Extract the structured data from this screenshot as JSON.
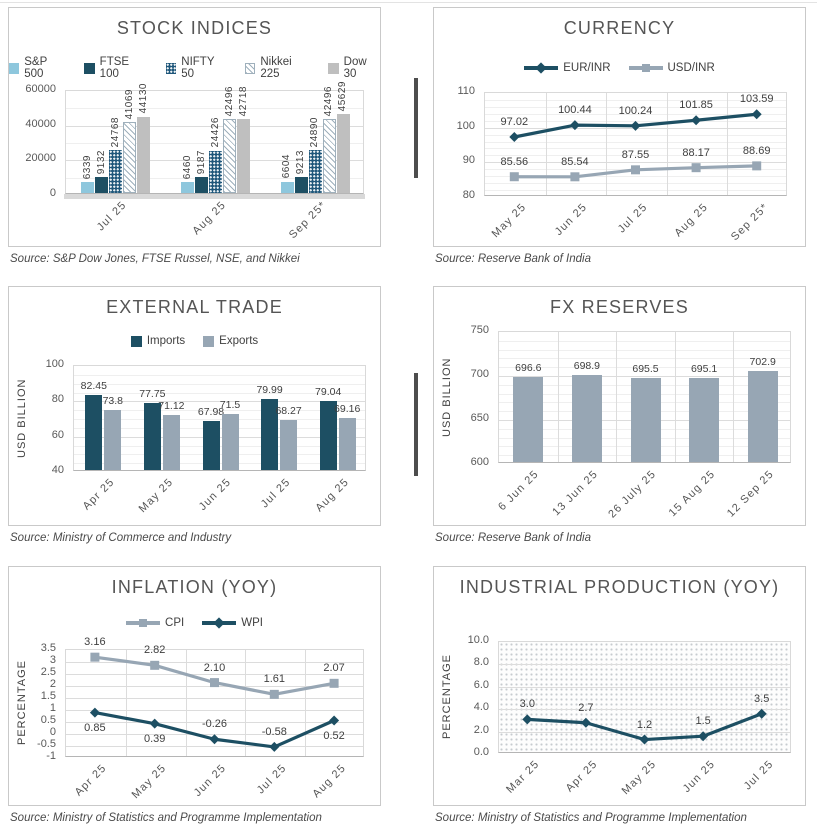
{
  "colors": {
    "teal": "#1d4f63",
    "light_blue": "#8ec7dd",
    "gray": "#bfbfbf",
    "gray_blue": "#97a6b4",
    "nifty_blue": "#1e567a",
    "hatch_line": "#9fb0bc"
  },
  "chart_data": [
    {
      "type": "bar",
      "title": "STOCK INDICES",
      "source": "Source: S&P Dow Jones, FTSE Russel, NSE, and Nikkei",
      "categories": [
        "Jul 25",
        "Aug 25",
        "Sep 25*"
      ],
      "series": [
        {
          "name": "S&P 500",
          "color": "light_blue",
          "pattern": "solid",
          "values": [
            6339,
            6460,
            6604
          ],
          "labels": [
            "6339",
            "6460",
            "6604"
          ]
        },
        {
          "name": "FTSE 100",
          "color": "teal",
          "pattern": "solid",
          "values": [
            9132,
            9187,
            9213
          ],
          "labels": [
            "9132",
            "9187",
            "9213"
          ]
        },
        {
          "name": "NIFTY 50",
          "color": "nifty_blue",
          "pattern": "dots",
          "values": [
            24768,
            24426,
            24890
          ],
          "labels": [
            "24768",
            "24426",
            "24890"
          ]
        },
        {
          "name": "Nikkei 225",
          "color": "hatch_line",
          "pattern": "hatch",
          "values": [
            41069,
            42496,
            42496
          ],
          "labels": [
            "41069",
            "42496",
            "42496"
          ]
        },
        {
          "name": "Dow 30",
          "color": "gray",
          "pattern": "solid",
          "values": [
            44130,
            42718,
            45629
          ],
          "labels": [
            "44130",
            "42718",
            "45629"
          ]
        }
      ],
      "ylim": [
        0,
        60000
      ],
      "ytick_values": [
        0,
        20000,
        40000,
        60000
      ],
      "ytick_labels": [
        "0",
        "20000",
        "40000",
        "60000"
      ],
      "legend": true,
      "grid": "horizontal"
    },
    {
      "type": "line",
      "title": "CURRENCY",
      "source": "Source: Reserve Bank of India",
      "categories": [
        "May 25",
        "Jun 25",
        "Jul 25",
        "Aug 25",
        "Sep 25*"
      ],
      "series": [
        {
          "name": "EUR/INR",
          "color": "teal",
          "marker": "diamond",
          "values": [
            97.02,
            100.44,
            100.24,
            101.85,
            103.59
          ],
          "labels": [
            "97.02",
            "100.44",
            "100.24",
            "101.85",
            "103.59"
          ],
          "label_position": "above"
        },
        {
          "name": "USD/INR",
          "color": "gray_blue",
          "marker": "square",
          "values": [
            85.56,
            85.54,
            87.55,
            88.17,
            88.69
          ],
          "labels": [
            "85.56",
            "85.54",
            "87.55",
            "88.17",
            "88.69"
          ],
          "label_position": "above"
        }
      ],
      "ylim": [
        80,
        110
      ],
      "ytick_values": [
        80,
        90,
        100,
        110
      ],
      "ytick_labels": [
        "80",
        "90",
        "100",
        "110"
      ],
      "legend": true,
      "grid": "both"
    },
    {
      "type": "bar",
      "title": "EXTERNAL TRADE",
      "source": "Source: Ministry of Commerce and Industry",
      "categories": [
        "Apr 25",
        "May 25",
        "Jun 25",
        "Jul 25",
        "Aug 25"
      ],
      "series": [
        {
          "name": "Imports",
          "color": "teal",
          "pattern": "solid",
          "values": [
            82.45,
            77.75,
            67.98,
            79.99,
            79.04
          ],
          "labels": [
            "82.45",
            "77.75",
            "67.98",
            "79.99",
            "79.04"
          ]
        },
        {
          "name": "Exports",
          "color": "gray_blue",
          "pattern": "solid",
          "values": [
            73.8,
            71.12,
            71.5,
            68.27,
            69.16
          ],
          "labels": [
            "73.8",
            "71.12",
            "71.5",
            "68.27",
            "69.16"
          ]
        }
      ],
      "ylim": [
        40,
        100
      ],
      "ytick_values": [
        40,
        60,
        80,
        100
      ],
      "ytick_labels": [
        "40",
        "60",
        "80",
        "100"
      ],
      "ylabel": "USD BILLION",
      "legend": true,
      "grid": "horizontal"
    },
    {
      "type": "bar",
      "title": "FX RESERVES",
      "source": "Source: Reserve Bank of India",
      "categories": [
        "6 Jun 25",
        "13 Jun 25",
        "26 July 25",
        "15 Aug 25",
        "12 Sep 25"
      ],
      "series": [
        {
          "name": "",
          "color": "gray_blue",
          "pattern": "solid",
          "values": [
            696.6,
            698.9,
            695.5,
            695.1,
            702.9
          ],
          "labels": [
            "696.6",
            "698.9",
            "695.5",
            "695.1",
            "702.9"
          ]
        }
      ],
      "ylim": [
        600,
        750
      ],
      "ytick_values": [
        600,
        650,
        700,
        750
      ],
      "ytick_labels": [
        "600",
        "650",
        "700",
        "750"
      ],
      "ylabel": "USD BILLION",
      "legend": false,
      "grid": "both"
    },
    {
      "type": "line",
      "title": "INFLATION (YOY)",
      "source": "Source: Ministry of Statistics and Programme Implementation",
      "categories": [
        "Apr 25",
        "May 25",
        "Jun 25",
        "Jul 25",
        "Aug 25"
      ],
      "series": [
        {
          "name": "CPI",
          "color": "gray_blue",
          "marker": "square",
          "values": [
            3.16,
            2.82,
            2.1,
            1.61,
            2.07
          ],
          "labels": [
            "3.16",
            "2.82",
            "2.10",
            "1.61",
            "2.07"
          ],
          "label_position": "above"
        },
        {
          "name": "WPI",
          "color": "teal",
          "marker": "diamond",
          "values": [
            0.85,
            0.39,
            -0.26,
            -0.58,
            0.52
          ],
          "labels": [
            "0.85",
            "0.39",
            "-0.26",
            "-0.58",
            "0.52"
          ],
          "label_position": [
            "below",
            "below",
            "above",
            "above",
            "below"
          ]
        }
      ],
      "ylim": [
        -1,
        3.5
      ],
      "ytick_values": [
        -1,
        -0.5,
        0,
        0.5,
        1,
        1.5,
        2,
        2.5,
        3,
        3.5
      ],
      "ytick_labels": [
        "-1",
        "-0.5",
        "0",
        "0.5",
        "1",
        "1.5",
        "2",
        "2.5",
        "3",
        "3.5"
      ],
      "ylabel": "PERCENTAGE",
      "legend": true,
      "grid": "both"
    },
    {
      "type": "line",
      "title": "INDUSTRIAL PRODUCTION (YOY)",
      "source": "Source: Ministry of Statistics and Programme Implementation",
      "categories": [
        "Mar 25",
        "Apr 25",
        "May 25",
        "Jun 25",
        "Jul 25"
      ],
      "series": [
        {
          "name": "",
          "color": "teal",
          "marker": "diamond",
          "values": [
            3.0,
            2.7,
            1.2,
            1.5,
            3.5
          ],
          "labels": [
            "3.0",
            "2.7",
            "1.2",
            "1.5",
            "3.5"
          ],
          "label_position": "above"
        }
      ],
      "ylim": [
        0,
        10
      ],
      "ytick_values": [
        0,
        2,
        4,
        6,
        8,
        10
      ],
      "ytick_labels": [
        "0.0",
        "2.0",
        "4.0",
        "6.0",
        "8.0",
        "10.0"
      ],
      "ylabel": "PERCENTAGE",
      "legend": false,
      "grid": "horizontal",
      "plot_background": "dotted"
    }
  ]
}
